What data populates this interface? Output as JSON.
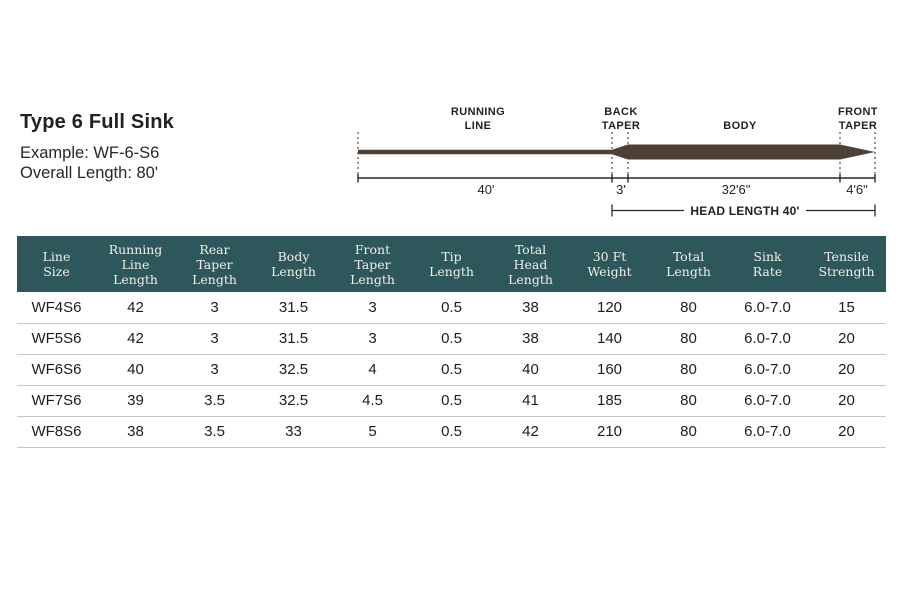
{
  "info": {
    "title": "Type 6 Full Sink",
    "example": "Example: WF-6-S6",
    "overall_length": "Overall Length: 80'"
  },
  "diagram": {
    "line_color": "#4c4037",
    "section_labels": {
      "running_line_line1": "RUNNING",
      "running_line_line2": "LINE",
      "back_taper_line1": "BACK",
      "back_taper_line2": "TAPER",
      "body": "BODY",
      "front_taper_line1": "FRONT",
      "front_taper_line2": "TAPER"
    },
    "measurements": {
      "running_line": "40'",
      "back_taper": "3'",
      "body": "32'6\"",
      "front_taper": "4'6\""
    },
    "head_length_label": "HEAD LENGTH 40'"
  },
  "table": {
    "header_bg": "#2d575a",
    "header_text_color": "#f1eee6",
    "columns": [
      "Line\nSize",
      "Running\nLine\nLength",
      "Rear\nTaper\nLength",
      "Body\nLength",
      "Front\nTaper\nLength",
      "Tip\nLength",
      "Total\nHead\nLength",
      "30 Ft\nWeight",
      "Total\nLength",
      "Sink\nRate",
      "Tensile\nStrength"
    ],
    "rows": [
      [
        "WF4S6",
        "42",
        "3",
        "31.5",
        "3",
        "0.5",
        "38",
        "120",
        "80",
        "6.0-7.0",
        "15"
      ],
      [
        "WF5S6",
        "42",
        "3",
        "31.5",
        "3",
        "0.5",
        "38",
        "140",
        "80",
        "6.0-7.0",
        "20"
      ],
      [
        "WF6S6",
        "40",
        "3",
        "32.5",
        "4",
        "0.5",
        "40",
        "160",
        "80",
        "6.0-7.0",
        "20"
      ],
      [
        "WF7S6",
        "39",
        "3.5",
        "32.5",
        "4.5",
        "0.5",
        "41",
        "185",
        "80",
        "6.0-7.0",
        "20"
      ],
      [
        "WF8S6",
        "38",
        "3.5",
        "33",
        "5",
        "0.5",
        "42",
        "210",
        "80",
        "6.0-7.0",
        "20"
      ]
    ]
  }
}
